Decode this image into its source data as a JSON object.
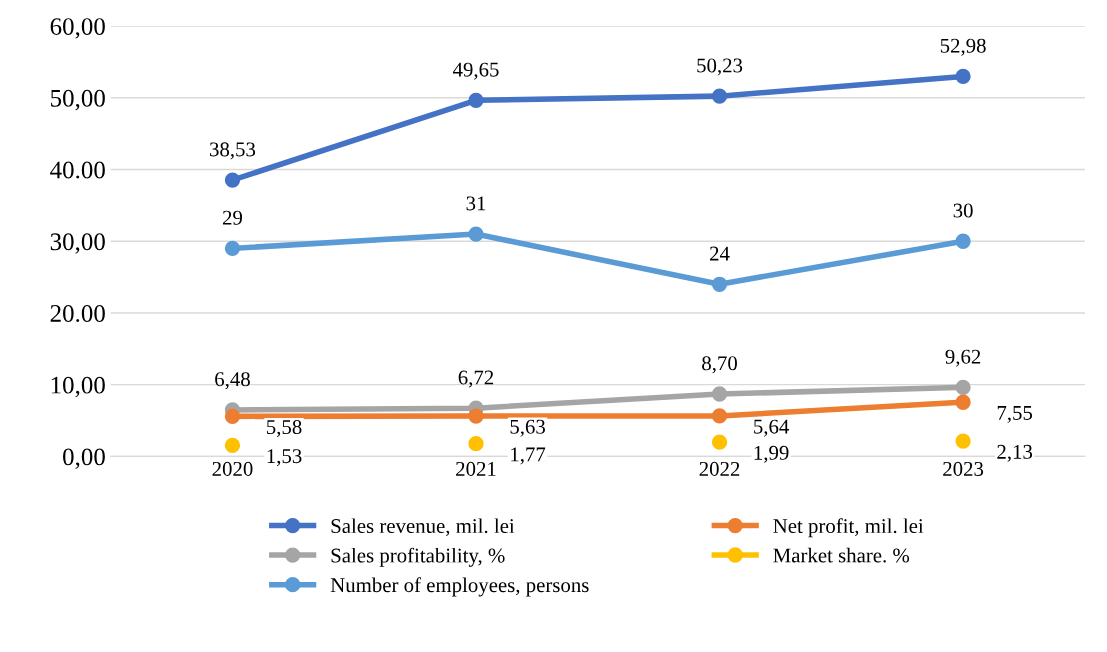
{
  "chart_data": {
    "type": "line",
    "categories": [
      "2020",
      "2021",
      "2022",
      "2023"
    ],
    "series": [
      {
        "name": "Sales revenue, mil. lei",
        "color": "#4472c4",
        "values": [
          38.53,
          49.65,
          50.23,
          52.98
        ],
        "value_labels": [
          "38,53",
          "49,65",
          "50,23",
          "52,98"
        ]
      },
      {
        "name": "Sales profitability, %",
        "color": "#a5a5a5",
        "values": [
          6.48,
          6.72,
          8.7,
          9.62
        ],
        "value_labels": [
          "6,48",
          "6,72",
          "8,70",
          "9,62"
        ]
      },
      {
        "name": "Number of employees, persons",
        "color": "#5b9bd5",
        "values": [
          29,
          31,
          24,
          30
        ],
        "value_labels": [
          "29",
          "31",
          "24",
          "30"
        ]
      },
      {
        "name": "Net profit, mil. lei",
        "color": "#ed7d31",
        "values": [
          5.58,
          5.63,
          5.64,
          7.55
        ],
        "value_labels": [
          "5,58",
          "5,63",
          "5,64",
          "7,55"
        ]
      },
      {
        "name": "Market share. %",
        "type": "scatter",
        "color": "#ffc000",
        "values": [
          1.53,
          1.77,
          1.99,
          2.13
        ],
        "value_labels": [
          "1,53",
          "1,77",
          "1,99",
          "2,13"
        ]
      }
    ],
    "ylim": [
      0,
      60
    ],
    "yticks": [
      {
        "value": 0,
        "label": "0,00"
      },
      {
        "value": 10,
        "label": "10,00"
      },
      {
        "value": 20,
        "label": "20.00"
      },
      {
        "value": 30,
        "label": "30,00"
      },
      {
        "value": 40,
        "label": "40.00"
      },
      {
        "value": 50,
        "label": "50,00"
      },
      {
        "value": 60,
        "label": "60,00"
      }
    ],
    "grid": "y",
    "legend": "bottom",
    "marker": "circle"
  }
}
